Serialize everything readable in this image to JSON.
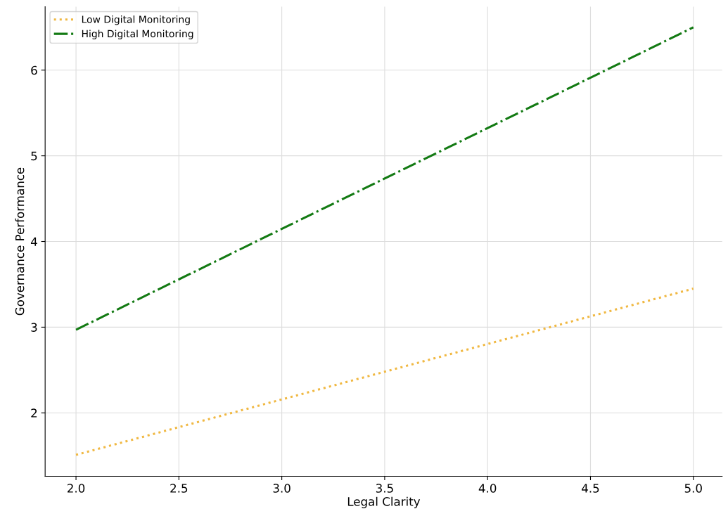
{
  "chart_data": {
    "type": "line",
    "xlabel": "Legal Clarity",
    "ylabel": "Governance Performance",
    "x": [
      2.0,
      5.0
    ],
    "series": [
      {
        "name": "Low Digital Monitoring",
        "color": "#f0b842",
        "values": [
          1.51,
          3.45
        ],
        "line_style": "dotted"
      },
      {
        "name": "High Digital Monitoring",
        "color": "#137a13",
        "values": [
          2.97,
          6.5
        ],
        "line_style": "dashdot"
      }
    ],
    "xlim": [
      1.85,
      5.14
    ],
    "ylim": [
      1.26,
      6.74
    ],
    "xticks": [
      {
        "value": 2.0,
        "label": "2.0"
      },
      {
        "value": 2.5,
        "label": "2.5"
      },
      {
        "value": 3.0,
        "label": "3.0"
      },
      {
        "value": 3.5,
        "label": "3.5"
      },
      {
        "value": 4.0,
        "label": "4.0"
      },
      {
        "value": 4.5,
        "label": "4.5"
      },
      {
        "value": 5.0,
        "label": "5.0"
      }
    ],
    "yticks": [
      2,
      3,
      4,
      5,
      6
    ],
    "grid": true,
    "legend": "top left",
    "marker": "none"
  }
}
